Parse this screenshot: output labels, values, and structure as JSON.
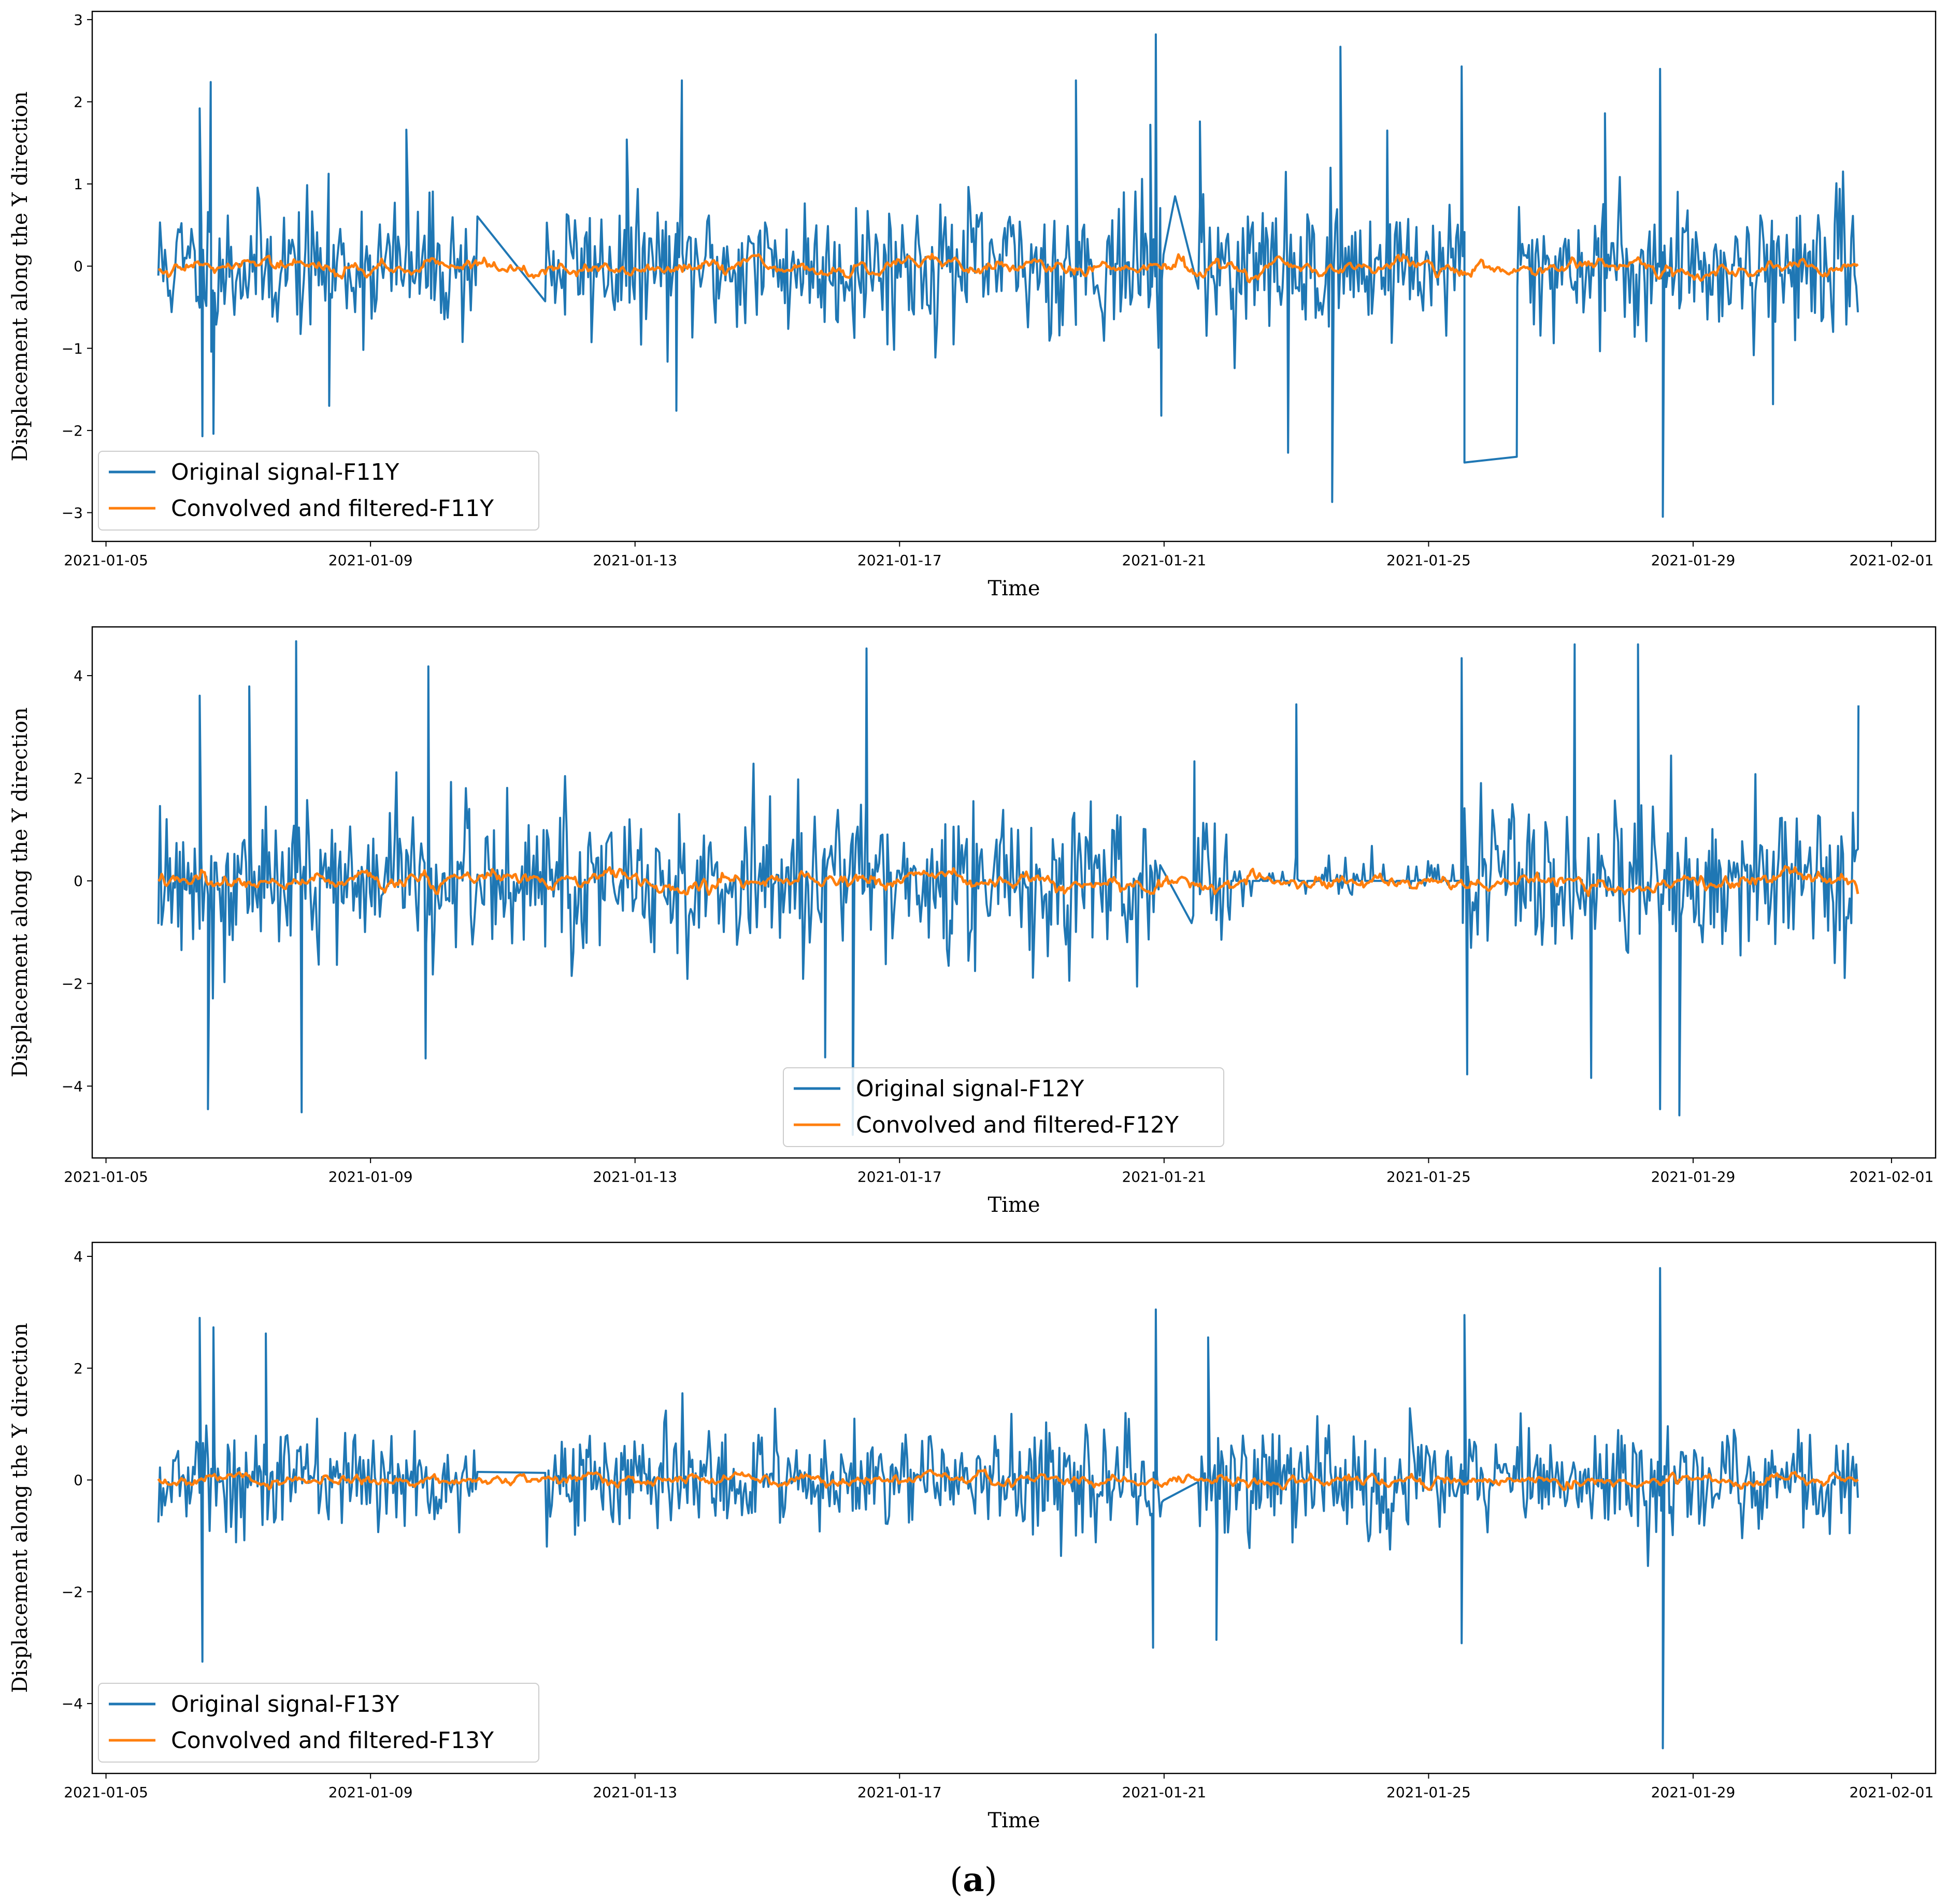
{
  "colors": {
    "original": "#1f77b4",
    "filtered": "#ff7f0e",
    "axis": "#000000",
    "background": "#ffffff",
    "legend_border": "#cccccc"
  },
  "caption": {
    "open": "(",
    "letter": "a",
    "close": ")"
  },
  "chart_data": [
    {
      "type": "line",
      "xlabel": "Time",
      "ylabel": "Displacement along the Y direction",
      "x_range": [
        "2021-01-04T19:00",
        "2021-02-01T16:00"
      ],
      "ylim": [
        -3.35,
        3.1
      ],
      "yticks": [
        -3,
        -2,
        -1,
        0,
        1,
        2,
        3
      ],
      "ytick_labels": [
        "−3",
        "−2",
        "−1",
        "0",
        "1",
        "2",
        "3"
      ],
      "xticks": [
        "2021-01-05",
        "2021-01-09",
        "2021-01-13",
        "2021-01-17",
        "2021-01-21",
        "2021-01-25",
        "2021-01-29",
        "2021-02-01"
      ],
      "xtick_labels": [
        "2021-01-05",
        "2021-01-09",
        "2021-01-13",
        "2021-01-17",
        "2021-01-21",
        "2021-01-25",
        "2021-01-29",
        "2021-02-01"
      ],
      "legend_position": "lower-left",
      "series": [
        {
          "name": "Original signal-F11Y",
          "role": "original",
          "start": "2021-01-05T19:00",
          "end": "2021-01-31T12:00",
          "amplitude": 0.75,
          "seed": 11,
          "gaps": [
            [
              "2021-01-10T15:00",
              "2021-01-11T15:00"
            ],
            [
              "2021-01-21T00:00",
              "2021-01-21T12:00"
            ],
            [
              "2021-01-25T13:00",
              "2021-01-26T08:00"
            ]
          ],
          "spikes": [
            {
              "t": "2021-01-06T10:00",
              "v": 1.92
            },
            {
              "t": "2021-01-06T14:00",
              "v": 2.24
            },
            {
              "t": "2021-01-06T11:00",
              "v": -2.07
            },
            {
              "t": "2021-01-06T15:00",
              "v": -2.04
            },
            {
              "t": "2021-01-09T13:00",
              "v": 1.66
            },
            {
              "t": "2021-01-08T09:00",
              "v": -1.7
            },
            {
              "t": "2021-01-13T17:00",
              "v": 2.26
            },
            {
              "t": "2021-01-13T15:00",
              "v": -1.76
            },
            {
              "t": "2021-01-12T21:00",
              "v": 1.54
            },
            {
              "t": "2021-01-19T16:00",
              "v": 2.26
            },
            {
              "t": "2021-01-20T19:00",
              "v": 1.72
            },
            {
              "t": "2021-01-20T21:00",
              "v": 2.82
            },
            {
              "t": "2021-01-20T23:00",
              "v": -1.82
            },
            {
              "t": "2021-01-21T04:00",
              "v": 0.85
            },
            {
              "t": "2021-01-21T13:00",
              "v": 1.76
            },
            {
              "t": "2021-01-22T21:00",
              "v": -2.27
            },
            {
              "t": "2021-01-23T13:00",
              "v": -2.87
            },
            {
              "t": "2021-01-23T16:00",
              "v": 2.67
            },
            {
              "t": "2021-01-24T09:00",
              "v": 1.65
            },
            {
              "t": "2021-01-25T12:00",
              "v": 2.43
            },
            {
              "t": "2021-01-25T13:00",
              "v": -2.39
            },
            {
              "t": "2021-01-26T08:00",
              "v": -2.32
            },
            {
              "t": "2021-01-27T16:00",
              "v": 1.86
            },
            {
              "t": "2021-01-28T12:00",
              "v": 2.4
            },
            {
              "t": "2021-01-28T13:00",
              "v": -3.05
            },
            {
              "t": "2021-01-30T05:00",
              "v": -1.68
            }
          ]
        },
        {
          "name": "Convolved and filtered-F11Y",
          "role": "filtered",
          "start": "2021-01-05T19:00",
          "end": "2021-01-31T12:00",
          "amplitude": 0.03,
          "seed": 111,
          "offset": -0.02
        }
      ]
    },
    {
      "type": "line",
      "xlabel": "Time",
      "ylabel": "Displacement along the Y direction",
      "x_range": [
        "2021-01-04T19:00",
        "2021-02-01T16:00"
      ],
      "ylim": [
        -5.4,
        4.95
      ],
      "yticks": [
        -4,
        -2,
        0,
        2,
        4
      ],
      "ytick_labels": [
        "−4",
        "−2",
        "0",
        "2",
        "4"
      ],
      "xticks": [
        "2021-01-05",
        "2021-01-09",
        "2021-01-13",
        "2021-01-17",
        "2021-01-21",
        "2021-01-25",
        "2021-01-29",
        "2021-02-01"
      ],
      "xtick_labels": [
        "2021-01-05",
        "2021-01-09",
        "2021-01-13",
        "2021-01-17",
        "2021-01-21",
        "2021-01-25",
        "2021-01-29",
        "2021-02-01"
      ],
      "legend_position": "lower-center",
      "series": [
        {
          "name": "Original signal-F12Y",
          "role": "original",
          "start": "2021-01-05T19:00",
          "end": "2021-01-31T12:00",
          "amplitude": 1.35,
          "seed": 12,
          "gaps": [
            [
              "2021-01-20T23:00",
              "2021-01-21T10:00"
            ]
          ],
          "quiet": [
            [
              "2021-01-22T00:00",
              "2021-01-25T12:00",
              0.35
            ]
          ],
          "spikes": [
            {
              "t": "2021-01-06T10:00",
              "v": 3.61
            },
            {
              "t": "2021-01-06T13:00",
              "v": -4.45
            },
            {
              "t": "2021-01-07T04:00",
              "v": 3.79
            },
            {
              "t": "2021-01-07T21:00",
              "v": 4.67
            },
            {
              "t": "2021-01-07T23:00",
              "v": -4.51
            },
            {
              "t": "2021-01-09T21:00",
              "v": 4.18
            },
            {
              "t": "2021-01-09T20:00",
              "v": -3.46
            },
            {
              "t": "2021-01-16T12:00",
              "v": 4.53
            },
            {
              "t": "2021-01-15T21:00",
              "v": -3.44
            },
            {
              "t": "2021-01-16T07:00",
              "v": -4.95
            },
            {
              "t": "2021-01-21T11:00",
              "v": 2.33
            },
            {
              "t": "2021-01-23T00:00",
              "v": 3.44
            },
            {
              "t": "2021-01-25T12:00",
              "v": 4.34
            },
            {
              "t": "2021-01-25T14:00",
              "v": -3.77
            },
            {
              "t": "2021-01-27T05:00",
              "v": 4.61
            },
            {
              "t": "2021-01-27T11:00",
              "v": -3.84
            },
            {
              "t": "2021-01-28T04:00",
              "v": 4.61
            },
            {
              "t": "2021-01-28T12:00",
              "v": -4.45
            },
            {
              "t": "2021-01-28T19:00",
              "v": -4.57
            },
            {
              "t": "2021-01-31T12:00",
              "v": 3.42
            }
          ]
        },
        {
          "name": "Convolved and filtered-F12Y",
          "role": "filtered",
          "start": "2021-01-05T19:00",
          "end": "2021-01-31T12:00",
          "amplitude": 0.05,
          "seed": 121,
          "offset": 0.0
        }
      ]
    },
    {
      "type": "line",
      "xlabel": "Time",
      "ylabel": "Displacement along the Y direction",
      "x_range": [
        "2021-01-04T19:00",
        "2021-02-01T16:00"
      ],
      "ylim": [
        -5.25,
        4.25
      ],
      "yticks": [
        -4,
        -2,
        0,
        2,
        4
      ],
      "ytick_labels": [
        "−4",
        "−2",
        "0",
        "2",
        "4"
      ],
      "xticks": [
        "2021-01-05",
        "2021-01-09",
        "2021-01-13",
        "2021-01-17",
        "2021-01-21",
        "2021-01-25",
        "2021-01-29",
        "2021-02-01"
      ],
      "xtick_labels": [
        "2021-01-05",
        "2021-01-09",
        "2021-01-13",
        "2021-01-17",
        "2021-01-21",
        "2021-01-25",
        "2021-01-29",
        "2021-02-01"
      ],
      "legend_position": "lower-left",
      "series": [
        {
          "name": "Original signal-F13Y",
          "role": "original",
          "start": "2021-01-05T19:00",
          "end": "2021-01-31T12:00",
          "amplitude": 0.85,
          "seed": 13,
          "gaps": [
            [
              "2021-01-10T15:00",
              "2021-01-11T15:00"
            ],
            [
              "2021-01-21T00:00",
              "2021-01-21T12:00"
            ]
          ],
          "spikes": [
            {
              "t": "2021-01-06T10:00",
              "v": 2.9
            },
            {
              "t": "2021-01-06T11:00",
              "v": -3.25
            },
            {
              "t": "2021-01-06T15:00",
              "v": 2.73
            },
            {
              "t": "2021-01-07T10:00",
              "v": 2.62
            },
            {
              "t": "2021-01-20T21:00",
              "v": 3.05
            },
            {
              "t": "2021-01-20T20:00",
              "v": -3.0
            },
            {
              "t": "2021-01-21T16:00",
              "v": 2.55
            },
            {
              "t": "2021-01-21T19:00",
              "v": -2.86
            },
            {
              "t": "2021-01-25T13:00",
              "v": 2.95
            },
            {
              "t": "2021-01-25T12:00",
              "v": -2.92
            },
            {
              "t": "2021-01-28T12:00",
              "v": 3.79
            },
            {
              "t": "2021-01-28T13:00",
              "v": -4.8
            }
          ]
        },
        {
          "name": "Convolved and filtered-F13Y",
          "role": "filtered",
          "start": "2021-01-05T19:00",
          "end": "2021-01-31T12:00",
          "amplitude": 0.035,
          "seed": 131,
          "offset": -0.01
        }
      ]
    }
  ]
}
